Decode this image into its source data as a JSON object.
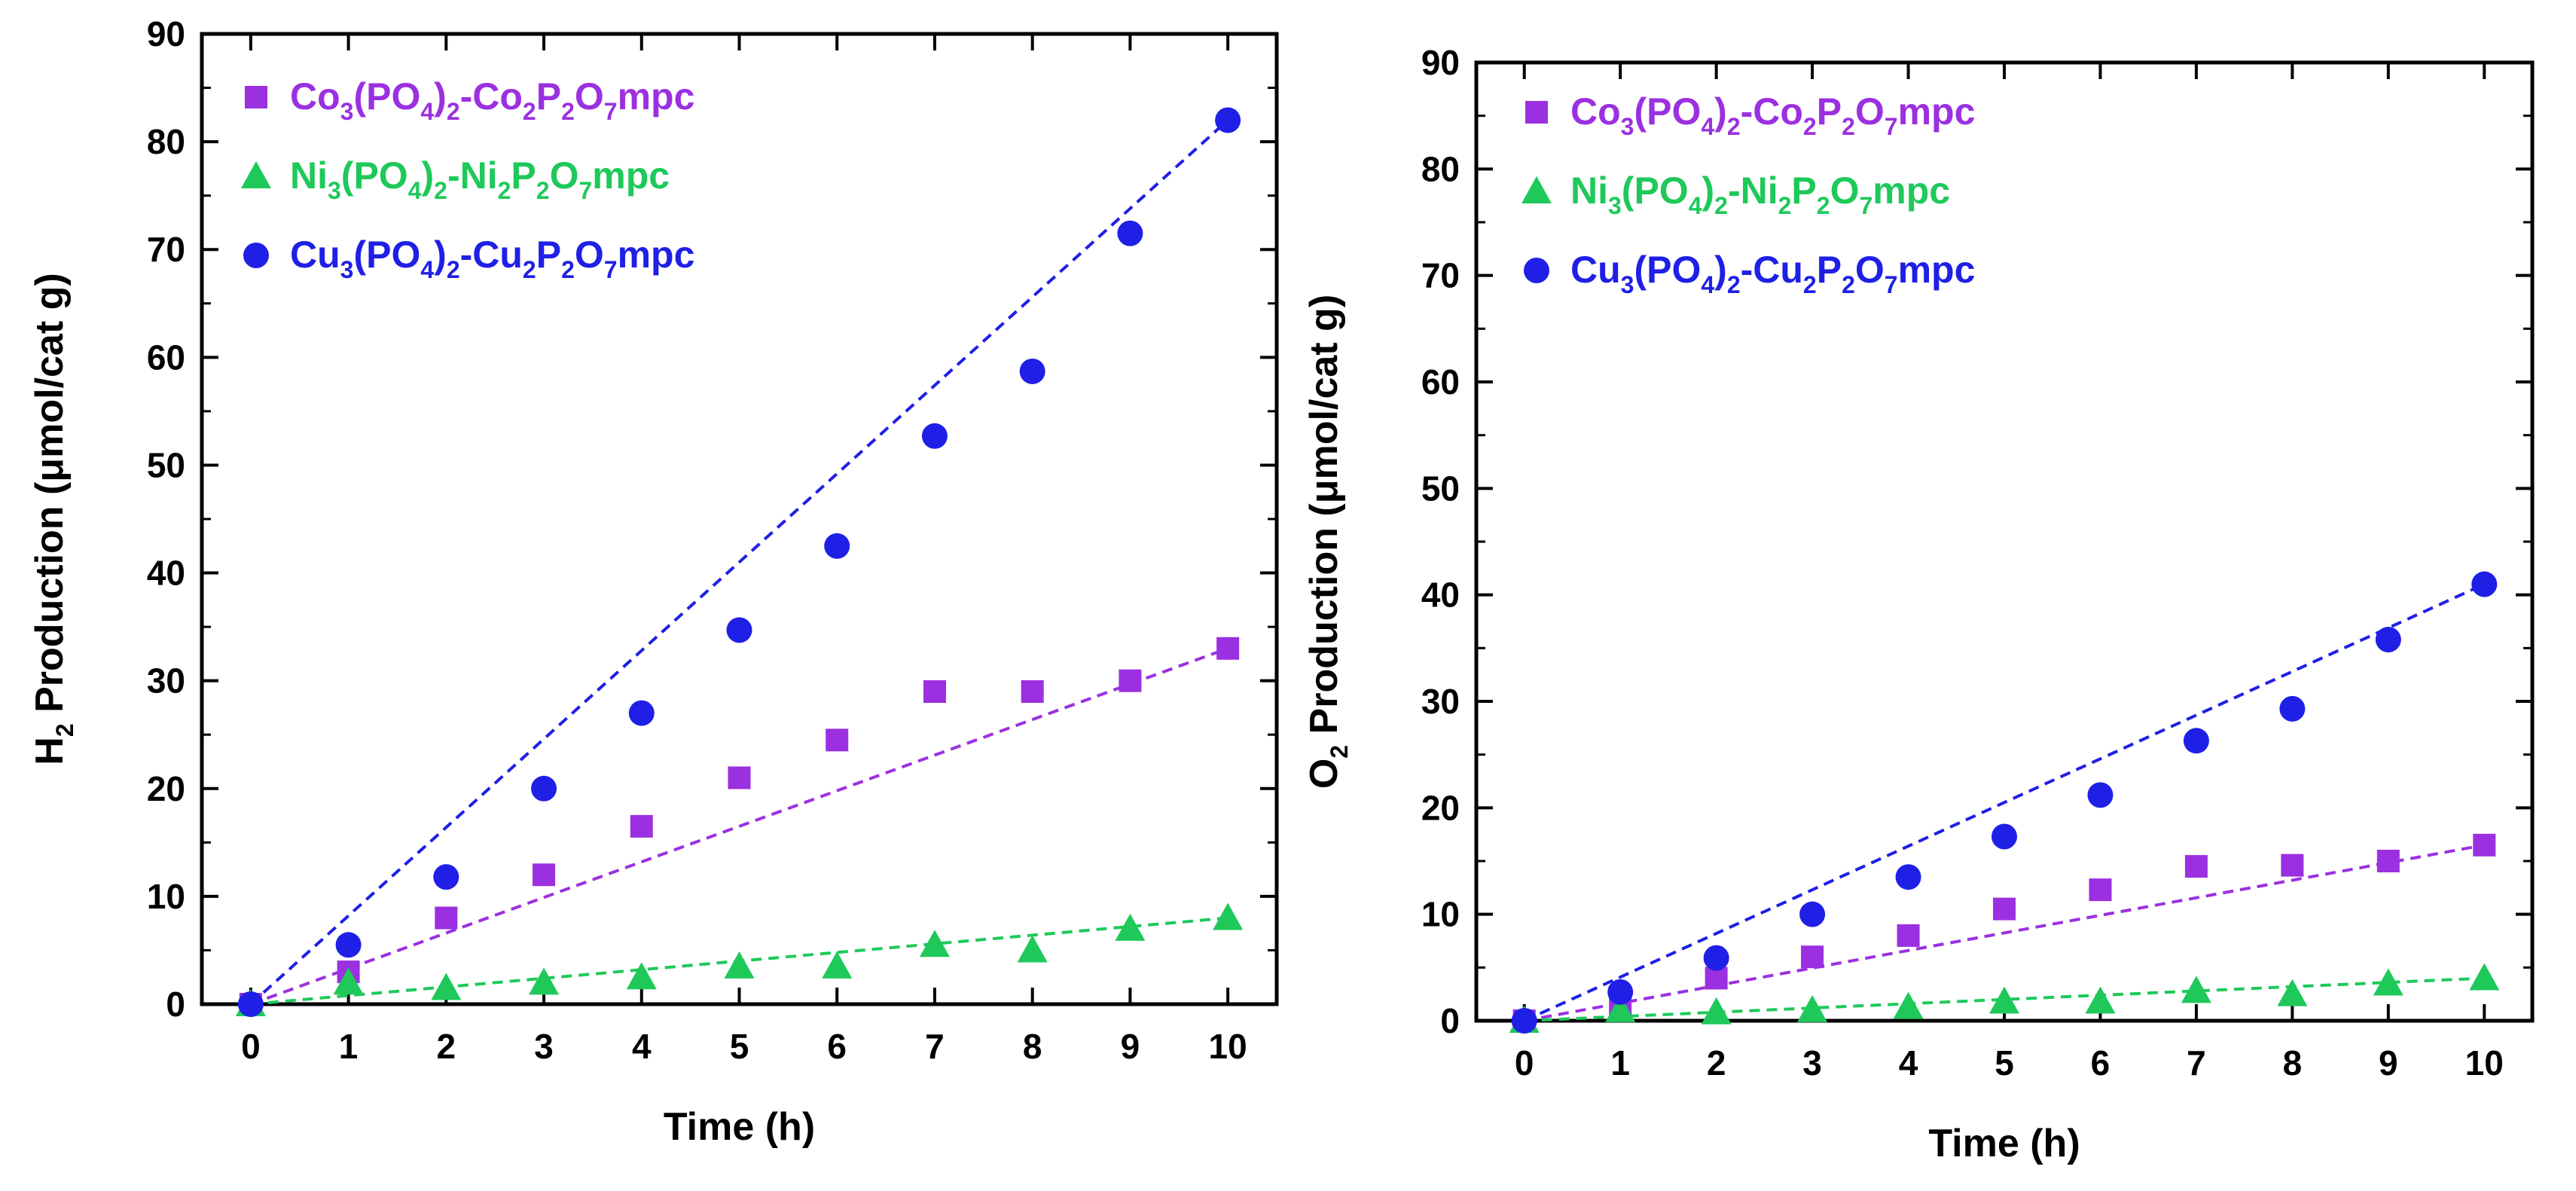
{
  "colors": {
    "co": "#9b30e0",
    "ni": "#1ec95a",
    "cu": "#1f1fe6",
    "axis": "#000000"
  },
  "chart_data": [
    {
      "type": "scatter",
      "title": "",
      "ylabel": {
        "prefix": "H",
        "sub": "2",
        "suffix": " Production (μmol/cat g)"
      },
      "xlabel": "Time (h)",
      "xlim": [
        -0.5,
        10.5
      ],
      "ylim": [
        0,
        90
      ],
      "xticks": [
        0,
        1,
        2,
        3,
        4,
        5,
        6,
        7,
        8,
        9,
        10
      ],
      "yticks": [
        0,
        10,
        20,
        30,
        40,
        50,
        60,
        70,
        80,
        90
      ],
      "legend_position": "top-left",
      "series": [
        {
          "key": "co",
          "marker": "square",
          "legend": [
            {
              "t": "Co"
            },
            {
              "t": "3",
              "s": 1
            },
            {
              "t": "(PO"
            },
            {
              "t": "4",
              "s": 1
            },
            {
              "t": ")"
            },
            {
              "t": "2",
              "s": 1
            },
            {
              "t": "-Co"
            },
            {
              "t": "2",
              "s": 1
            },
            {
              "t": "P"
            },
            {
              "t": "2",
              "s": 1
            },
            {
              "t": "O"
            },
            {
              "t": "7",
              "s": 1
            },
            {
              "t": "mpc"
            }
          ],
          "x": [
            0,
            1,
            2,
            3,
            4,
            5,
            6,
            7,
            8,
            9,
            10
          ],
          "y": [
            0,
            3,
            8,
            12,
            16.5,
            21,
            24.5,
            29,
            29,
            30,
            33
          ],
          "fit": [
            0,
            33
          ]
        },
        {
          "key": "ni",
          "marker": "triangle",
          "legend": [
            {
              "t": "Ni"
            },
            {
              "t": "3",
              "s": 1
            },
            {
              "t": "(PO"
            },
            {
              "t": "4",
              "s": 1
            },
            {
              "t": ")"
            },
            {
              "t": "2",
              "s": 1
            },
            {
              "t": "-Ni"
            },
            {
              "t": "2",
              "s": 1
            },
            {
              "t": "P"
            },
            {
              "t": "2",
              "s": 1
            },
            {
              "t": "O"
            },
            {
              "t": "7",
              "s": 1
            },
            {
              "t": "mpc"
            }
          ],
          "x": [
            0,
            1,
            2,
            3,
            4,
            5,
            6,
            7,
            8,
            9,
            10
          ],
          "y": [
            0,
            2,
            1.5,
            2,
            2.5,
            3.5,
            3.5,
            5.5,
            5,
            7,
            8
          ],
          "fit": [
            0,
            8
          ]
        },
        {
          "key": "cu",
          "marker": "circle",
          "legend": [
            {
              "t": "Cu"
            },
            {
              "t": "3",
              "s": 1
            },
            {
              "t": "(PO"
            },
            {
              "t": "4",
              "s": 1
            },
            {
              "t": ")"
            },
            {
              "t": "2",
              "s": 1
            },
            {
              "t": "-Cu"
            },
            {
              "t": "2",
              "s": 1
            },
            {
              "t": "P"
            },
            {
              "t": "2",
              "s": 1
            },
            {
              "t": "O"
            },
            {
              "t": "7",
              "s": 1
            },
            {
              "t": "mpc"
            }
          ],
          "x": [
            0,
            1,
            2,
            3,
            4,
            5,
            6,
            7,
            8,
            9,
            10
          ],
          "y": [
            0,
            5.5,
            11.8,
            20,
            27,
            34.7,
            42.5,
            52.7,
            58.7,
            71.5,
            82
          ],
          "fit": [
            0,
            82
          ]
        }
      ]
    },
    {
      "type": "scatter",
      "title": "",
      "ylabel": {
        "prefix": "O",
        "sub": "2",
        "suffix": " Production (μmol/cat g)"
      },
      "xlabel": "Time (h)",
      "xlim": [
        -0.5,
        10.5
      ],
      "ylim": [
        0,
        90
      ],
      "xticks": [
        0,
        1,
        2,
        3,
        4,
        5,
        6,
        7,
        8,
        9,
        10
      ],
      "yticks": [
        0,
        10,
        20,
        30,
        40,
        50,
        60,
        70,
        80,
        90
      ],
      "legend_position": "top-left",
      "series": [
        {
          "key": "co",
          "marker": "square",
          "legend": [
            {
              "t": "Co"
            },
            {
              "t": "3",
              "s": 1
            },
            {
              "t": "(PO"
            },
            {
              "t": "4",
              "s": 1
            },
            {
              "t": ")"
            },
            {
              "t": "2",
              "s": 1
            },
            {
              "t": "-Co"
            },
            {
              "t": "2",
              "s": 1
            },
            {
              "t": "P"
            },
            {
              "t": "2",
              "s": 1
            },
            {
              "t": "O"
            },
            {
              "t": "7",
              "s": 1
            },
            {
              "t": "mpc"
            }
          ],
          "x": [
            0,
            1,
            2,
            3,
            4,
            5,
            6,
            7,
            8,
            9,
            10
          ],
          "y": [
            0,
            1.5,
            4,
            6,
            8,
            10.5,
            12.3,
            14.5,
            14.6,
            15,
            16.5
          ],
          "fit": [
            0,
            16.5
          ]
        },
        {
          "key": "ni",
          "marker": "triangle",
          "legend": [
            {
              "t": "Ni"
            },
            {
              "t": "3",
              "s": 1
            },
            {
              "t": "(PO"
            },
            {
              "t": "4",
              "s": 1
            },
            {
              "t": ")"
            },
            {
              "t": "2",
              "s": 1
            },
            {
              "t": "-Ni"
            },
            {
              "t": "2",
              "s": 1
            },
            {
              "t": "P"
            },
            {
              "t": "2",
              "s": 1
            },
            {
              "t": "O"
            },
            {
              "t": "7",
              "s": 1
            },
            {
              "t": "mpc"
            }
          ],
          "x": [
            0,
            1,
            2,
            3,
            4,
            5,
            6,
            7,
            8,
            9,
            10
          ],
          "y": [
            0,
            1,
            0.8,
            1,
            1.3,
            1.8,
            1.8,
            2.8,
            2.5,
            3.5,
            4
          ],
          "fit": [
            0,
            4
          ]
        },
        {
          "key": "cu",
          "marker": "circle",
          "legend": [
            {
              "t": "Cu"
            },
            {
              "t": "3",
              "s": 1
            },
            {
              "t": "(PO"
            },
            {
              "t": "4",
              "s": 1
            },
            {
              "t": ")"
            },
            {
              "t": "2",
              "s": 1
            },
            {
              "t": "-Cu"
            },
            {
              "t": "2",
              "s": 1
            },
            {
              "t": "P"
            },
            {
              "t": "2",
              "s": 1
            },
            {
              "t": "O"
            },
            {
              "t": "7",
              "s": 1
            },
            {
              "t": "mpc"
            }
          ],
          "x": [
            0,
            1,
            2,
            3,
            4,
            5,
            6,
            7,
            8,
            9,
            10
          ],
          "y": [
            0,
            2.7,
            5.9,
            10,
            13.5,
            17.3,
            21.2,
            26.3,
            29.3,
            35.8,
            41
          ],
          "fit": [
            0,
            41
          ]
        }
      ]
    }
  ]
}
